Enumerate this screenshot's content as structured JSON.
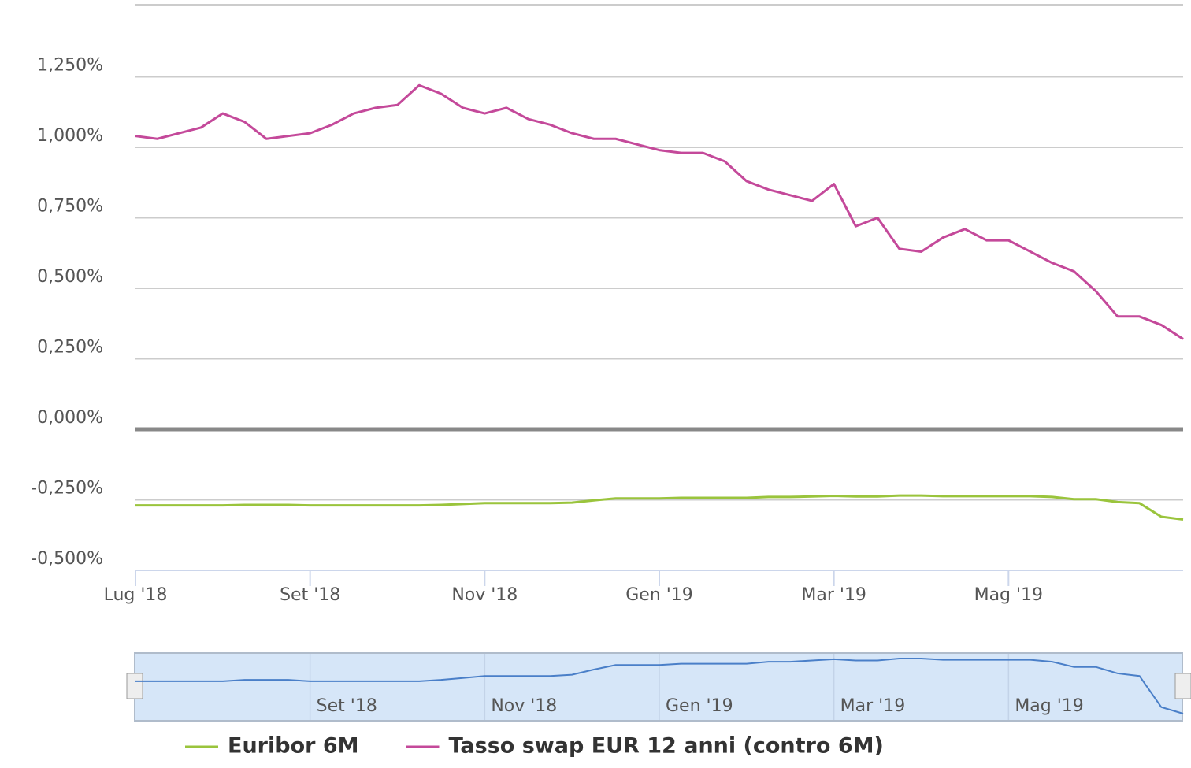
{
  "chart_data": {
    "type": "line",
    "categories": [
      "Lug '18",
      null,
      null,
      null,
      null,
      null,
      null,
      null,
      "Set '18",
      null,
      null,
      null,
      null,
      null,
      null,
      null,
      "Nov '18",
      null,
      null,
      null,
      null,
      null,
      null,
      null,
      "Gen '19",
      null,
      null,
      null,
      null,
      null,
      null,
      null,
      "Mar '19",
      null,
      null,
      null,
      null,
      null,
      null,
      null,
      "Mag '19",
      null,
      null,
      null,
      null,
      null,
      null,
      null,
      null
    ],
    "series": [
      {
        "name": "Euribor 6M",
        "color": "#9ac43c",
        "values": [
          -0.27,
          -0.27,
          -0.27,
          -0.27,
          -0.27,
          -0.268,
          -0.268,
          -0.268,
          -0.27,
          -0.27,
          -0.27,
          -0.27,
          -0.27,
          -0.27,
          -0.268,
          -0.265,
          -0.262,
          -0.262,
          -0.262,
          -0.262,
          -0.26,
          -0.252,
          -0.245,
          -0.245,
          -0.245,
          -0.243,
          -0.243,
          -0.243,
          -0.243,
          -0.24,
          -0.24,
          -0.238,
          -0.236,
          -0.238,
          -0.238,
          -0.235,
          -0.235,
          -0.237,
          -0.237,
          -0.237,
          -0.237,
          -0.237,
          -0.24,
          -0.248,
          -0.248,
          -0.258,
          -0.262,
          -0.31,
          -0.32
        ]
      },
      {
        "name": "Tasso swap EUR 12 anni (contro 6M)",
        "color": "#c4499a",
        "values": [
          1.04,
          1.03,
          1.05,
          1.07,
          1.12,
          1.09,
          1.03,
          1.04,
          1.05,
          1.08,
          1.12,
          1.14,
          1.15,
          1.22,
          1.19,
          1.14,
          1.12,
          1.14,
          1.1,
          1.08,
          1.05,
          1.03,
          1.03,
          1.01,
          0.99,
          0.98,
          0.98,
          0.95,
          0.88,
          0.85,
          0.83,
          0.81,
          0.87,
          0.72,
          0.75,
          0.64,
          0.63,
          0.68,
          0.71,
          0.67,
          0.67,
          0.63,
          0.59,
          0.56,
          0.49,
          0.4,
          0.4,
          0.37,
          0.32
        ]
      }
    ],
    "ylim": [
      -0.5,
      1.5
    ],
    "yticks": [
      {
        "value": -0.5,
        "label": "-0,500%"
      },
      {
        "value": -0.25,
        "label": "-0,250%"
      },
      {
        "value": 0,
        "label": "0,000%"
      },
      {
        "value": 0.25,
        "label": "0,250%"
      },
      {
        "value": 0.5,
        "label": "0,500%"
      },
      {
        "value": 0.75,
        "label": "0,750%"
      },
      {
        "value": 1,
        "label": "1,000%"
      },
      {
        "value": 1.25,
        "label": "1,250%"
      }
    ],
    "grid": true
  }
}
